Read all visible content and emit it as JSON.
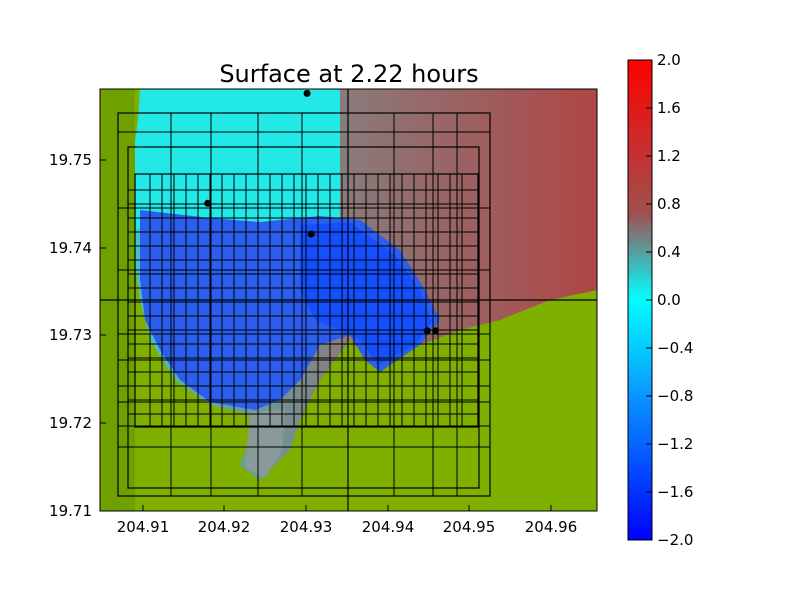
{
  "plot": {
    "title": "Surface at 2.22 hours",
    "x_range": [
      204.905,
      204.965
    ],
    "y_range": [
      19.71,
      19.758
    ],
    "x_ticks": [
      "204.91",
      "204.92",
      "204.93",
      "204.94",
      "204.95",
      "204.96"
    ],
    "y_ticks": [
      "19.71",
      "19.72",
      "19.73",
      "19.74",
      "19.75"
    ],
    "gauges_lonlat": [
      [
        204.93,
        19.7575
      ],
      [
        204.918,
        19.745
      ],
      [
        204.9305,
        19.7415
      ],
      [
        204.9445,
        19.7305
      ],
      [
        204.9455,
        19.7305
      ]
    ],
    "land_color": "#7fb000",
    "deep_water_color": "#2a64ff",
    "shallow_water_color": "#00ffff",
    "offshore_color": "#b04a4a"
  },
  "colorbar": {
    "ticks": [
      "2.0",
      "1.6",
      "1.2",
      "0.8",
      "0.4",
      "0.0",
      "−0.4",
      "−0.8",
      "−1.2",
      "−1.6",
      "−2.0"
    ],
    "colors": [
      "#ff0000",
      "#808080",
      "#00ffff",
      "#0000ff"
    ]
  }
}
